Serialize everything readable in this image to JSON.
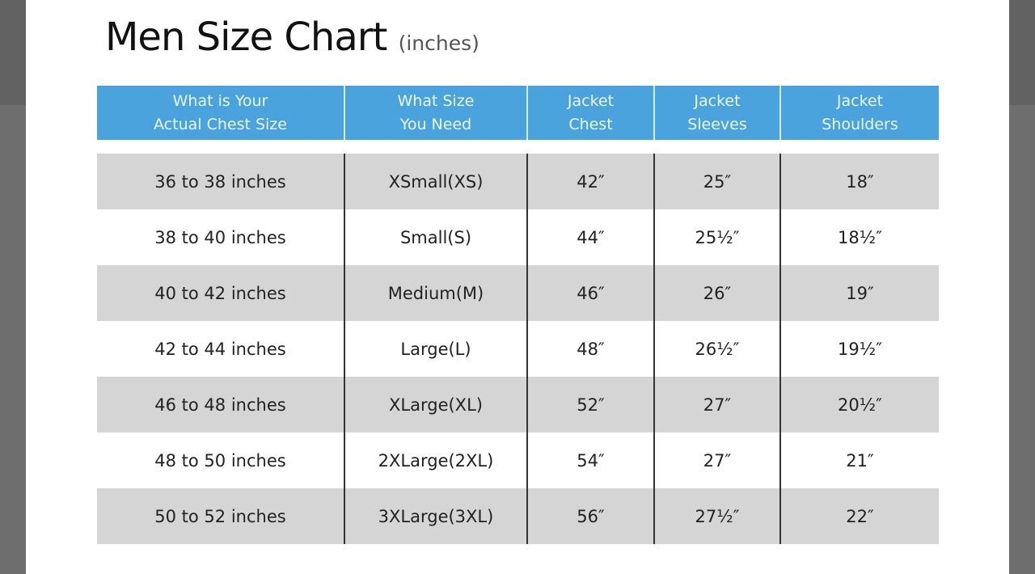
{
  "title": "Men Size Chart",
  "subtitle": "(inches)",
  "colors": {
    "header": "#4aa3dc",
    "alt_row": "#d5d5d5"
  },
  "headers": [
    "What is Your\nActual Chest Size",
    "What Size\nYou Need",
    "Jacket\nChest",
    "Jacket\nSleeves",
    "Jacket\nShoulders"
  ],
  "rows": [
    [
      "36 to 38 inches",
      "XSmall(XS)",
      "42″",
      "25″",
      "18″"
    ],
    [
      "38 to 40 inches",
      "Small(S)",
      "44″",
      "25½″",
      "18½″"
    ],
    [
      "40 to 42 inches",
      "Medium(M)",
      "46″",
      "26″",
      "19″"
    ],
    [
      "42 to 44 inches",
      "Large(L)",
      "48″",
      "26½″",
      "19½″"
    ],
    [
      "46 to 48 inches",
      "XLarge(XL)",
      "52″",
      "27″",
      "20½″"
    ],
    [
      "48 to 50 inches",
      "2XLarge(2XL)",
      "54″",
      "27″",
      "21″"
    ],
    [
      "50 to 52 inches",
      "3XLarge(3XL)",
      "56″",
      "27½″",
      "22″"
    ]
  ]
}
